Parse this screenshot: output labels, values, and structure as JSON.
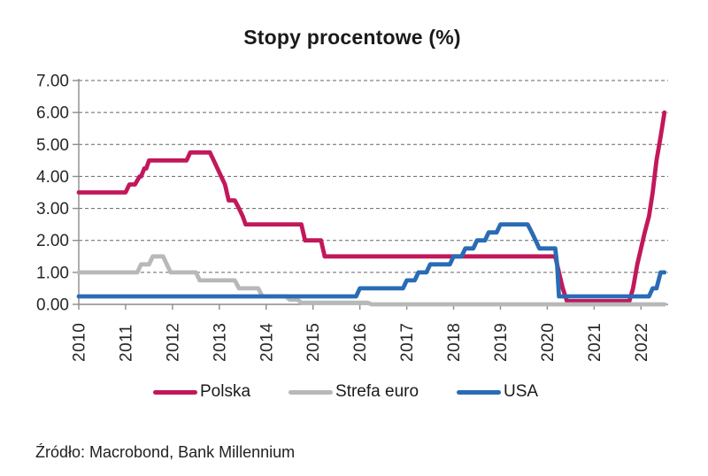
{
  "title": "Stopy procentowe (%)",
  "source_note": "Źródło: Macrobond, Bank Millennium",
  "colors": {
    "polska": "#C2185B",
    "strefa_euro": "#B6B9B8",
    "usa": "#2A6BB5",
    "grid": "#666666",
    "axis": "#8C8C8C",
    "tick_text": "#262626"
  },
  "legend": [
    {
      "label": "Polska",
      "color": "#C2185B"
    },
    {
      "label": "Strefa euro",
      "color": "#B6B9B8"
    },
    {
      "label": "USA",
      "color": "#2A6BB5"
    }
  ],
  "chart_data": {
    "type": "line",
    "title": "Stopy procentowe (%)",
    "xlabel": "",
    "ylabel": "",
    "ylim": [
      0,
      7
    ],
    "xlim": [
      2010,
      2022.58
    ],
    "grid": "horizontal-dashed",
    "legend_position": "bottom",
    "y_ticks": [
      7,
      6,
      5,
      4,
      3,
      2,
      1,
      0
    ],
    "y_tick_labels": [
      "7.00",
      "6.00",
      "5.00",
      "4.00",
      "3.00",
      "2.00",
      "1.00",
      "0.00"
    ],
    "x_ticks": [
      2010,
      2011,
      2012,
      2013,
      2014,
      2015,
      2016,
      2017,
      2018,
      2019,
      2020,
      2021,
      2022
    ],
    "x_tick_labels": [
      "2010",
      "2011",
      "2012",
      "2013",
      "2014",
      "2015",
      "2016",
      "2017",
      "2018",
      "2019",
      "2020",
      "2021",
      "2022"
    ],
    "series": [
      {
        "name": "Polska",
        "color": "#C2185B",
        "points": [
          [
            2010.0,
            3.5
          ],
          [
            2011.0,
            3.5
          ],
          [
            2011.08,
            3.75
          ],
          [
            2011.2,
            3.75
          ],
          [
            2011.3,
            4.0
          ],
          [
            2011.33,
            4.0
          ],
          [
            2011.4,
            4.25
          ],
          [
            2011.44,
            4.25
          ],
          [
            2011.5,
            4.5
          ],
          [
            2012.3,
            4.5
          ],
          [
            2012.38,
            4.75
          ],
          [
            2012.8,
            4.75
          ],
          [
            2012.88,
            4.5
          ],
          [
            2012.96,
            4.25
          ],
          [
            2013.04,
            4.0
          ],
          [
            2013.12,
            3.75
          ],
          [
            2013.2,
            3.25
          ],
          [
            2013.33,
            3.25
          ],
          [
            2013.42,
            3.0
          ],
          [
            2013.5,
            2.75
          ],
          [
            2013.56,
            2.5
          ],
          [
            2014.75,
            2.5
          ],
          [
            2014.83,
            2.0
          ],
          [
            2015.17,
            2.0
          ],
          [
            2015.25,
            1.5
          ],
          [
            2020.17,
            1.5
          ],
          [
            2020.25,
            1.0
          ],
          [
            2020.33,
            0.5
          ],
          [
            2020.42,
            0.1
          ],
          [
            2021.75,
            0.1
          ],
          [
            2021.83,
            0.5
          ],
          [
            2021.92,
            1.25
          ],
          [
            2022.0,
            1.75
          ],
          [
            2022.08,
            2.25
          ],
          [
            2022.17,
            2.75
          ],
          [
            2022.25,
            3.5
          ],
          [
            2022.33,
            4.5
          ],
          [
            2022.42,
            5.25
          ],
          [
            2022.5,
            6.0
          ]
        ]
      },
      {
        "name": "Strefa euro",
        "color": "#B6B9B8",
        "points": [
          [
            2010.0,
            1.0
          ],
          [
            2011.25,
            1.0
          ],
          [
            2011.33,
            1.25
          ],
          [
            2011.5,
            1.25
          ],
          [
            2011.58,
            1.5
          ],
          [
            2011.8,
            1.5
          ],
          [
            2011.88,
            1.25
          ],
          [
            2011.96,
            1.0
          ],
          [
            2012.5,
            1.0
          ],
          [
            2012.58,
            0.75
          ],
          [
            2013.33,
            0.75
          ],
          [
            2013.42,
            0.5
          ],
          [
            2013.83,
            0.5
          ],
          [
            2013.92,
            0.25
          ],
          [
            2014.42,
            0.25
          ],
          [
            2014.5,
            0.15
          ],
          [
            2014.67,
            0.15
          ],
          [
            2014.75,
            0.05
          ],
          [
            2016.17,
            0.05
          ],
          [
            2016.25,
            0.0
          ],
          [
            2022.5,
            0.0
          ]
        ]
      },
      {
        "name": "USA",
        "color": "#2A6BB5",
        "points": [
          [
            2010.0,
            0.25
          ],
          [
            2015.92,
            0.25
          ],
          [
            2016.0,
            0.5
          ],
          [
            2016.92,
            0.5
          ],
          [
            2017.0,
            0.75
          ],
          [
            2017.17,
            0.75
          ],
          [
            2017.25,
            1.0
          ],
          [
            2017.42,
            1.0
          ],
          [
            2017.5,
            1.25
          ],
          [
            2017.92,
            1.25
          ],
          [
            2018.0,
            1.5
          ],
          [
            2018.17,
            1.5
          ],
          [
            2018.25,
            1.75
          ],
          [
            2018.42,
            1.75
          ],
          [
            2018.5,
            2.0
          ],
          [
            2018.67,
            2.0
          ],
          [
            2018.75,
            2.25
          ],
          [
            2018.92,
            2.25
          ],
          [
            2019.0,
            2.5
          ],
          [
            2019.58,
            2.5
          ],
          [
            2019.67,
            2.25
          ],
          [
            2019.75,
            2.0
          ],
          [
            2019.83,
            1.75
          ],
          [
            2020.17,
            1.75
          ],
          [
            2020.21,
            1.25
          ],
          [
            2020.25,
            0.25
          ],
          [
            2022.17,
            0.25
          ],
          [
            2022.25,
            0.5
          ],
          [
            2022.33,
            0.5
          ],
          [
            2022.42,
            1.0
          ],
          [
            2022.5,
            1.0
          ]
        ]
      }
    ]
  }
}
